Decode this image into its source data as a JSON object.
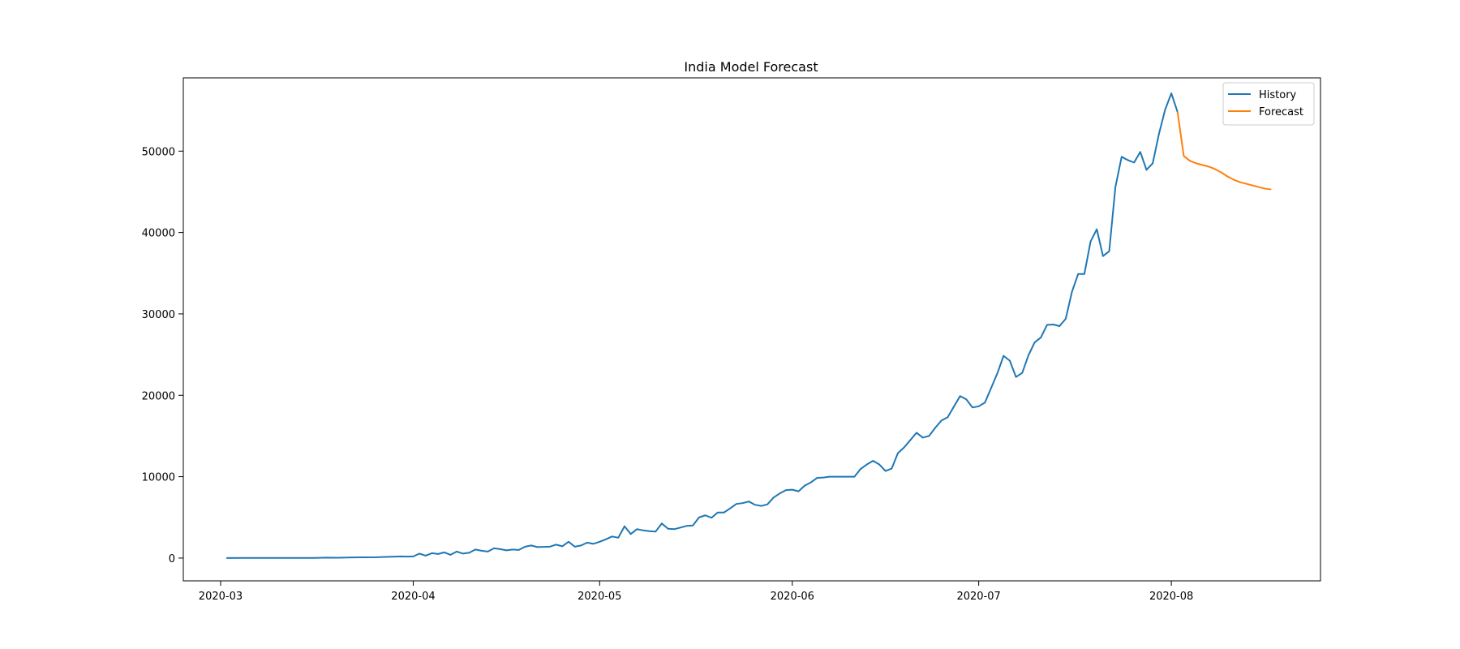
{
  "chart_data": {
    "type": "line",
    "title": "India Model Forecast",
    "xlabel": "",
    "ylabel": "",
    "x_axis": {
      "type": "date",
      "range": [
        "2020-02-24",
        "2020-08-25"
      ],
      "ticks": [
        "2020-03-01",
        "2020-04-01",
        "2020-05-01",
        "2020-06-01",
        "2020-07-01",
        "2020-08-01"
      ],
      "tick_labels": [
        "2020-03",
        "2020-04",
        "2020-05",
        "2020-06",
        "2020-07",
        "2020-08"
      ]
    },
    "y_axis": {
      "range": [
        -2800,
        59000
      ],
      "ticks": [
        0,
        10000,
        20000,
        30000,
        40000,
        50000
      ],
      "tick_labels": [
        "0",
        "10000",
        "20000",
        "30000",
        "40000",
        "50000"
      ]
    },
    "grid": false,
    "legend": "top-right",
    "series": [
      {
        "name": "History",
        "color": "#1f77b4",
        "points": [
          [
            "2020-03-02",
            0
          ],
          [
            "2020-03-04",
            20
          ],
          [
            "2020-03-06",
            10
          ],
          [
            "2020-03-08",
            20
          ],
          [
            "2020-03-10",
            10
          ],
          [
            "2020-03-12",
            20
          ],
          [
            "2020-03-14",
            10
          ],
          [
            "2020-03-16",
            20
          ],
          [
            "2020-03-18",
            50
          ],
          [
            "2020-03-20",
            40
          ],
          [
            "2020-03-22",
            80
          ],
          [
            "2020-03-24",
            90
          ],
          [
            "2020-03-26",
            100
          ],
          [
            "2020-03-28",
            150
          ],
          [
            "2020-03-30",
            200
          ],
          [
            "2020-03-31",
            180
          ],
          [
            "2020-04-01",
            200
          ],
          [
            "2020-04-02",
            550
          ],
          [
            "2020-04-03",
            300
          ],
          [
            "2020-04-04",
            600
          ],
          [
            "2020-04-05",
            500
          ],
          [
            "2020-04-06",
            700
          ],
          [
            "2020-04-07",
            400
          ],
          [
            "2020-04-08",
            800
          ],
          [
            "2020-04-09",
            550
          ],
          [
            "2020-04-10",
            650
          ],
          [
            "2020-04-11",
            1050
          ],
          [
            "2020-04-12",
            900
          ],
          [
            "2020-04-13",
            800
          ],
          [
            "2020-04-14",
            1200
          ],
          [
            "2020-04-15",
            1100
          ],
          [
            "2020-04-16",
            950
          ],
          [
            "2020-04-17",
            1050
          ],
          [
            "2020-04-18",
            1000
          ],
          [
            "2020-04-19",
            1400
          ],
          [
            "2020-04-20",
            1550
          ],
          [
            "2020-04-21",
            1350
          ],
          [
            "2020-04-23",
            1400
          ],
          [
            "2020-04-24",
            1650
          ],
          [
            "2020-04-25",
            1450
          ],
          [
            "2020-04-26",
            2000
          ],
          [
            "2020-04-27",
            1400
          ],
          [
            "2020-04-28",
            1550
          ],
          [
            "2020-04-29",
            1900
          ],
          [
            "2020-04-30",
            1750
          ],
          [
            "2020-05-01",
            2000
          ],
          [
            "2020-05-02",
            2300
          ],
          [
            "2020-05-03",
            2650
          ],
          [
            "2020-05-04",
            2500
          ],
          [
            "2020-05-05",
            3900
          ],
          [
            "2020-05-06",
            2950
          ],
          [
            "2020-05-07",
            3550
          ],
          [
            "2020-05-08",
            3400
          ],
          [
            "2020-05-09",
            3300
          ],
          [
            "2020-05-10",
            3250
          ],
          [
            "2020-05-11",
            4250
          ],
          [
            "2020-05-12",
            3600
          ],
          [
            "2020-05-13",
            3550
          ],
          [
            "2020-05-14",
            3750
          ],
          [
            "2020-05-15",
            3950
          ],
          [
            "2020-05-16",
            4000
          ],
          [
            "2020-05-17",
            5000
          ],
          [
            "2020-05-18",
            5250
          ],
          [
            "2020-05-19",
            4950
          ],
          [
            "2020-05-20",
            5600
          ],
          [
            "2020-05-21",
            5600
          ],
          [
            "2020-05-22",
            6100
          ],
          [
            "2020-05-23",
            6650
          ],
          [
            "2020-05-24",
            6750
          ],
          [
            "2020-05-25",
            6950
          ],
          [
            "2020-05-26",
            6550
          ],
          [
            "2020-05-27",
            6400
          ],
          [
            "2020-05-28",
            6600
          ],
          [
            "2020-05-29",
            7450
          ],
          [
            "2020-05-30",
            7950
          ],
          [
            "2020-05-31",
            8350
          ],
          [
            "2020-06-01",
            8400
          ],
          [
            "2020-06-02",
            8200
          ],
          [
            "2020-06-03",
            8900
          ],
          [
            "2020-06-04",
            9300
          ],
          [
            "2020-06-05",
            9850
          ],
          [
            "2020-06-06",
            9900
          ],
          [
            "2020-06-07",
            10000
          ],
          [
            "2020-06-08",
            10000
          ],
          [
            "2020-06-09",
            10000
          ],
          [
            "2020-06-10",
            10000
          ],
          [
            "2020-06-11",
            10000
          ],
          [
            "2020-06-12",
            10950
          ],
          [
            "2020-06-13",
            11500
          ],
          [
            "2020-06-14",
            11950
          ],
          [
            "2020-06-15",
            11500
          ],
          [
            "2020-06-16",
            10700
          ],
          [
            "2020-06-17",
            11000
          ],
          [
            "2020-06-18",
            12900
          ],
          [
            "2020-06-19",
            13600
          ],
          [
            "2020-06-20",
            14500
          ],
          [
            "2020-06-21",
            15400
          ],
          [
            "2020-06-22",
            14800
          ],
          [
            "2020-06-23",
            15000
          ],
          [
            "2020-06-24",
            16000
          ],
          [
            "2020-06-25",
            16900
          ],
          [
            "2020-06-26",
            17300
          ],
          [
            "2020-06-27",
            18600
          ],
          [
            "2020-06-28",
            19900
          ],
          [
            "2020-06-29",
            19500
          ],
          [
            "2020-06-30",
            18500
          ],
          [
            "2020-07-01",
            18650
          ],
          [
            "2020-07-02",
            19100
          ],
          [
            "2020-07-03",
            20900
          ],
          [
            "2020-07-04",
            22700
          ],
          [
            "2020-07-05",
            24850
          ],
          [
            "2020-07-06",
            24250
          ],
          [
            "2020-07-07",
            22250
          ],
          [
            "2020-07-08",
            22750
          ],
          [
            "2020-07-09",
            24900
          ],
          [
            "2020-07-10",
            26500
          ],
          [
            "2020-07-11",
            27100
          ],
          [
            "2020-07-12",
            28650
          ],
          [
            "2020-07-13",
            28700
          ],
          [
            "2020-07-14",
            28500
          ],
          [
            "2020-07-15",
            29400
          ],
          [
            "2020-07-16",
            32700
          ],
          [
            "2020-07-17",
            34900
          ],
          [
            "2020-07-18",
            34900
          ],
          [
            "2020-07-19",
            38900
          ],
          [
            "2020-07-20",
            40400
          ],
          [
            "2020-07-21",
            37100
          ],
          [
            "2020-07-22",
            37700
          ],
          [
            "2020-07-23",
            45600
          ],
          [
            "2020-07-24",
            49300
          ],
          [
            "2020-07-25",
            48900
          ],
          [
            "2020-07-26",
            48600
          ],
          [
            "2020-07-27",
            49900
          ],
          [
            "2020-07-28",
            47700
          ],
          [
            "2020-07-29",
            48500
          ],
          [
            "2020-07-30",
            52100
          ],
          [
            "2020-07-31",
            55100
          ],
          [
            "2020-08-01",
            57100
          ],
          [
            "2020-08-02",
            54800
          ]
        ]
      },
      {
        "name": "Forecast",
        "color": "#ff7f0e",
        "points": [
          [
            "2020-08-02",
            54800
          ],
          [
            "2020-08-03",
            49400
          ],
          [
            "2020-08-04",
            48800
          ],
          [
            "2020-08-05",
            48500
          ],
          [
            "2020-08-06",
            48300
          ],
          [
            "2020-08-07",
            48100
          ],
          [
            "2020-08-08",
            47800
          ],
          [
            "2020-08-09",
            47400
          ],
          [
            "2020-08-10",
            46900
          ],
          [
            "2020-08-11",
            46500
          ],
          [
            "2020-08-12",
            46200
          ],
          [
            "2020-08-13",
            46000
          ],
          [
            "2020-08-14",
            45800
          ],
          [
            "2020-08-15",
            45600
          ],
          [
            "2020-08-16",
            45400
          ],
          [
            "2020-08-17",
            45300
          ]
        ]
      }
    ]
  }
}
